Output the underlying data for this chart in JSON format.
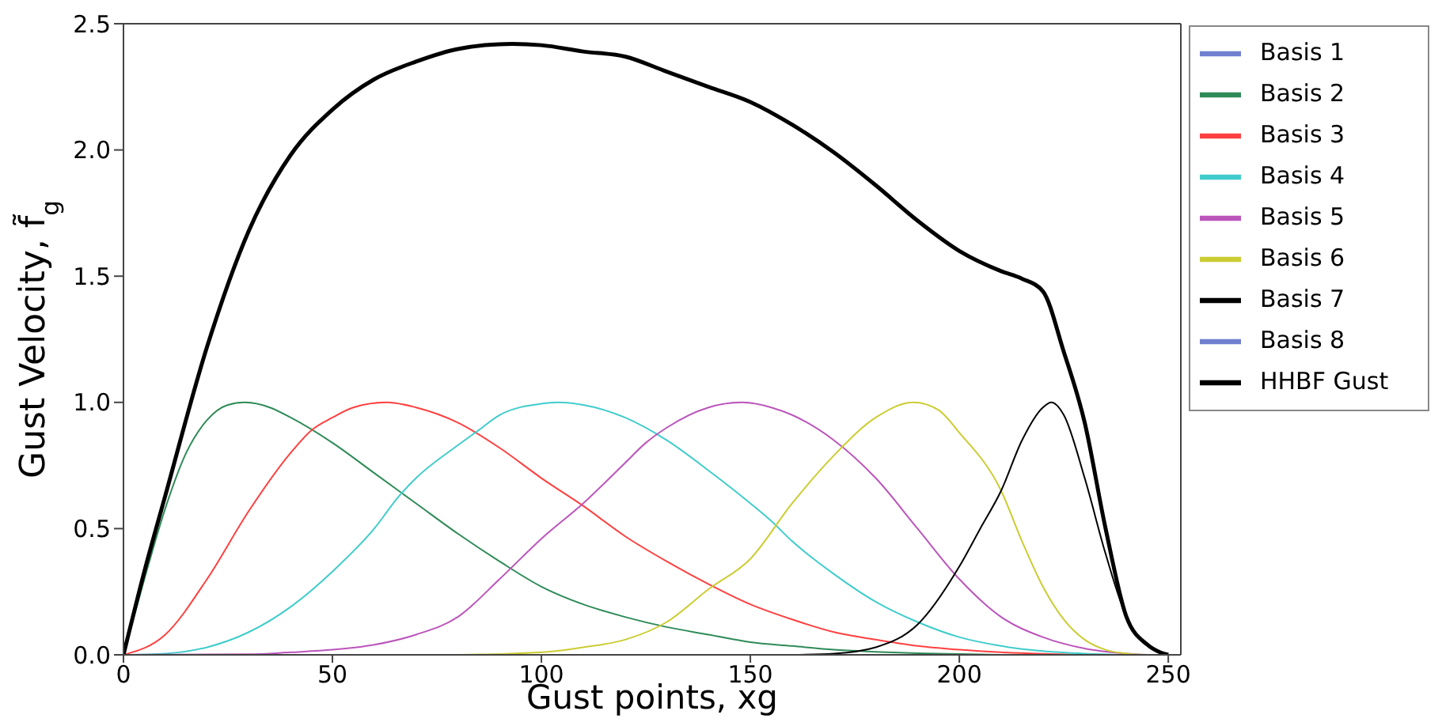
{
  "chart_data": {
    "type": "line",
    "xlabel": "Gust points, xg",
    "ylabel": "Gust Velocity, f̃$_{g}$",
    "xlim": [
      0,
      253
    ],
    "xticks": [
      0,
      50,
      100,
      150,
      200,
      250
    ],
    "ylim": [
      0,
      2.5
    ],
    "yticks": [
      {
        "value": 0,
        "label": "0.0"
      },
      {
        "value": 0.5,
        "label": "0.5"
      },
      {
        "value": 1,
        "label": "1.0"
      },
      {
        "value": 1.5,
        "label": "1.5"
      },
      {
        "value": 2,
        "label": "2.0"
      },
      {
        "value": 2.5,
        "label": "2.5"
      }
    ],
    "legend": "right",
    "marker": "none",
    "line_style": "solid",
    "series": [
      {
        "name": "Basis 1",
        "color": "#7080d0",
        "values": [
          null
        ]
      },
      {
        "name": "Basis 2",
        "color": "#2e8b57",
        "x": [
          0,
          5,
          10,
          15,
          20,
          25,
          29,
          35,
          40,
          50,
          60,
          70,
          80,
          90,
          100,
          110,
          120,
          130,
          140,
          150,
          160,
          170,
          180,
          190,
          200,
          210
        ],
        "values": [
          0,
          0.3,
          0.58,
          0.8,
          0.93,
          0.99,
          1.0,
          0.98,
          0.94,
          0.84,
          0.72,
          0.6,
          0.48,
          0.37,
          0.27,
          0.2,
          0.15,
          0.11,
          0.08,
          0.05,
          0.035,
          0.02,
          0.012,
          0.006,
          0.003,
          0
        ]
      },
      {
        "name": "Basis 3",
        "color": "#ff4040",
        "x": [
          0,
          10,
          20,
          30,
          40,
          45,
          50,
          55,
          63,
          70,
          80,
          90,
          100,
          110,
          120,
          130,
          140,
          150,
          160,
          170,
          180,
          190,
          200,
          210,
          220,
          230
        ],
        "values": [
          0,
          0.08,
          0.3,
          0.57,
          0.8,
          0.89,
          0.94,
          0.98,
          1.0,
          0.98,
          0.92,
          0.82,
          0.7,
          0.59,
          0.47,
          0.37,
          0.28,
          0.2,
          0.14,
          0.09,
          0.06,
          0.035,
          0.02,
          0.01,
          0.004,
          0
        ]
      },
      {
        "name": "Basis 4",
        "color": "#40cccc",
        "x": [
          0,
          10,
          20,
          30,
          40,
          50,
          60,
          66,
          70,
          80,
          85,
          90,
          100,
          104,
          110,
          120,
          130,
          140,
          150,
          155,
          160,
          170,
          180,
          190,
          200,
          210,
          220,
          230,
          240
        ],
        "values": [
          0,
          0.005,
          0.03,
          0.09,
          0.19,
          0.33,
          0.5,
          0.63,
          0.7,
          0.83,
          0.89,
          0.95,
          0.995,
          1.0,
          0.99,
          0.94,
          0.85,
          0.73,
          0.6,
          0.53,
          0.45,
          0.32,
          0.21,
          0.13,
          0.07,
          0.035,
          0.015,
          0.005,
          0
        ]
      },
      {
        "name": "Basis 5",
        "color": "#bb55bb",
        "x": [
          0,
          30,
          40,
          50,
          60,
          70,
          80,
          90,
          100,
          110,
          120,
          125,
          130,
          140,
          148,
          155,
          160,
          170,
          180,
          190,
          200,
          210,
          220,
          230,
          240,
          245
        ],
        "values": [
          0,
          0.002,
          0.01,
          0.02,
          0.04,
          0.08,
          0.15,
          0.3,
          0.46,
          0.6,
          0.76,
          0.84,
          0.9,
          0.98,
          1.0,
          0.98,
          0.95,
          0.85,
          0.7,
          0.5,
          0.3,
          0.15,
          0.07,
          0.025,
          0.005,
          0
        ]
      },
      {
        "name": "Basis 6",
        "color": "#cccc33",
        "x": [
          0,
          80,
          100,
          110,
          120,
          130,
          140,
          150,
          160,
          170,
          180,
          189,
          195,
          200,
          210,
          215,
          220,
          225,
          230,
          235,
          240,
          245
        ],
        "values": [
          0,
          0,
          0.01,
          0.03,
          0.06,
          0.13,
          0.26,
          0.38,
          0.6,
          0.79,
          0.94,
          1.0,
          0.97,
          0.88,
          0.65,
          0.45,
          0.27,
          0.14,
          0.06,
          0.02,
          0.005,
          0
        ]
      },
      {
        "name": "Basis 7",
        "color": "#000000",
        "x": [
          160,
          170,
          180,
          190,
          200,
          205,
          210,
          215,
          220,
          222,
          225,
          230,
          235,
          240,
          245,
          250
        ],
        "values": [
          0,
          0.005,
          0.03,
          0.12,
          0.35,
          0.5,
          0.65,
          0.85,
          0.98,
          1.0,
          0.95,
          0.7,
          0.4,
          0.15,
          0.04,
          0
        ]
      },
      {
        "name": "Basis 8",
        "color": "#7080d0",
        "values": [
          null
        ]
      },
      {
        "name": "HHBF Gust",
        "color": "#000000",
        "x": [
          0,
          5,
          10,
          20,
          30,
          40,
          50,
          60,
          70,
          80,
          93,
          100,
          110,
          120,
          130,
          140,
          150,
          160,
          170,
          180,
          190,
          200,
          210,
          215,
          220,
          225,
          230,
          235,
          240,
          245,
          248,
          250
        ],
        "values": [
          0,
          0.33,
          0.63,
          1.22,
          1.68,
          1.98,
          2.16,
          2.28,
          2.35,
          2.4,
          2.42,
          2.415,
          2.39,
          2.37,
          2.31,
          2.25,
          2.19,
          2.1,
          1.99,
          1.86,
          1.72,
          1.6,
          1.52,
          1.49,
          1.44,
          1.2,
          0.92,
          0.5,
          0.15,
          0.04,
          0.01,
          0
        ]
      }
    ]
  }
}
